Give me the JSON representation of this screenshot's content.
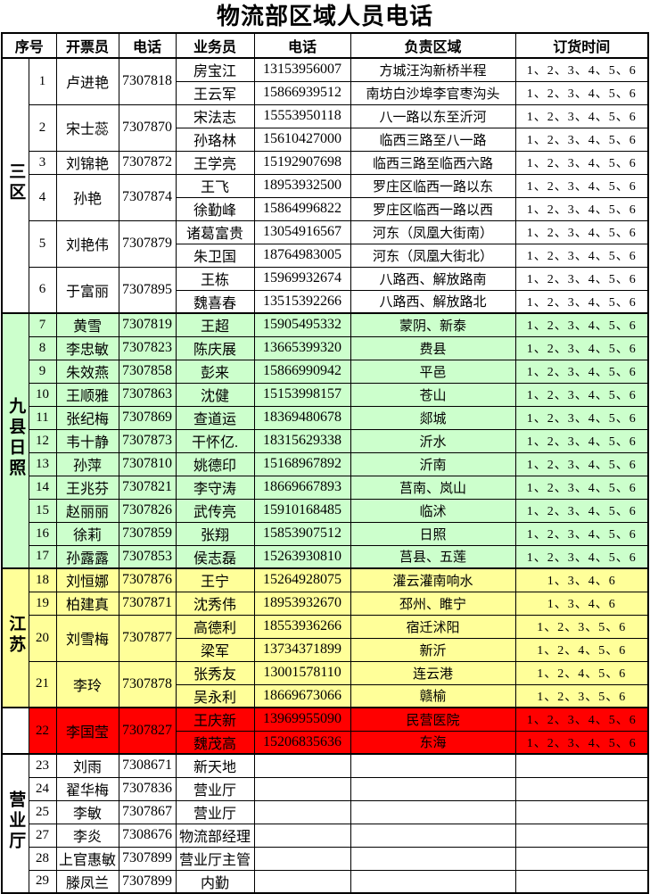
{
  "title": "物流部区域人员电话",
  "headers": [
    "序号",
    "开票员",
    "电话",
    "业务员",
    "电话",
    "负责区域",
    "订货时间"
  ],
  "colors": {
    "white": "#FFFFFF",
    "green": "#CCFFCC",
    "yellow": "#FFFF99",
    "red": "#FF0000",
    "border": "#000000"
  },
  "sections": [
    {
      "label": "三区",
      "bg": "#FFFFFF",
      "label_bg": "#FFFFFF",
      "rows": [
        {
          "no": "1",
          "clerk": "卢进艳",
          "clerk_phone": "7307818",
          "subs": [
            {
              "name": "房宝江",
              "phone": "13153956007",
              "area": "方城汪沟新桥半程",
              "time": "1、2、3、4、5、6"
            },
            {
              "name": "王云军",
              "phone": "15866939512",
              "area": "南坊白沙埠李官枣沟头",
              "time": "1、2、3、4、5、6"
            }
          ]
        },
        {
          "no": "2",
          "clerk": "宋士蕊",
          "clerk_phone": "7307870",
          "subs": [
            {
              "name": "宋法志",
              "phone": "15553950118",
              "area": "八一路以东至沂河",
              "time": "1、2、3、4、5、6"
            },
            {
              "name": "孙珞林",
              "phone": "15610427000",
              "area": "临西三路至八一路",
              "time": "1、2、3、4、5、6"
            }
          ]
        },
        {
          "no": "3",
          "clerk": "刘锦艳",
          "clerk_phone": "7307872",
          "subs": [
            {
              "name": "王学亮",
              "phone": "15192907698",
              "area": "临西三路至临西六路",
              "time": "1、2、3、4、5、6"
            }
          ]
        },
        {
          "no": "4",
          "clerk": "孙艳",
          "clerk_phone": "7307874",
          "subs": [
            {
              "name": "王飞",
              "phone": "18953932500",
              "area": "罗庄区临西一路以东",
              "time": "1、2、3、4、5、6"
            },
            {
              "name": "徐勤峰",
              "phone": "15864996822",
              "area": "罗庄区临西一路以西",
              "time": "1、2、3、4、5、6"
            }
          ]
        },
        {
          "no": "5",
          "clerk": "刘艳伟",
          "clerk_phone": "7307879",
          "subs": [
            {
              "name": "诸葛富贵",
              "phone": "13054916567",
              "area": "河东（凤凰大街南）",
              "time": "1、2、3、4、5、6"
            },
            {
              "name": "朱卫国",
              "phone": "18764983005",
              "area": "河东（凤凰大街北）",
              "time": "1、2、3、4、5、6"
            }
          ]
        },
        {
          "no": "6",
          "clerk": "于富丽",
          "clerk_phone": "7307895",
          "subs": [
            {
              "name": "王栋",
              "phone": "15969932674",
              "area": "八路西、解放路南",
              "time": "1、2、3、4、5、6"
            },
            {
              "name": "魏喜春",
              "phone": "13515392266",
              "area": "八路西、解放路北",
              "time": "1、2、3、4、5、6"
            }
          ]
        }
      ]
    },
    {
      "label": "九县日照",
      "bg": "#CCFFCC",
      "label_bg": "#CCFFCC",
      "rows": [
        {
          "no": "7",
          "clerk": "黄雪",
          "clerk_phone": "7307819",
          "subs": [
            {
              "name": "王超",
              "phone": "15905495332",
              "area": "蒙阴、新泰",
              "time": "1、2、3、4、5、6"
            }
          ]
        },
        {
          "no": "8",
          "clerk": "李忠敏",
          "clerk_phone": "7307823",
          "subs": [
            {
              "name": "陈庆展",
              "phone": "13665399320",
              "area": "费县",
              "time": "1、2、3、4、5、6"
            }
          ]
        },
        {
          "no": "9",
          "clerk": "朱效燕",
          "clerk_phone": "7307858",
          "subs": [
            {
              "name": "彭来",
              "phone": "15866990942",
              "area": "平邑",
              "time": "1、2、3、4、5、6"
            }
          ]
        },
        {
          "no": "10",
          "clerk": "王顺雅",
          "clerk_phone": "7307863",
          "subs": [
            {
              "name": "沈健",
              "phone": "15153998157",
              "area": "苍山",
              "time": "1、2、3、4、5、6"
            }
          ]
        },
        {
          "no": "11",
          "clerk": "张纪梅",
          "clerk_phone": "7307869",
          "subs": [
            {
              "name": "查道运",
              "phone": "18369480678",
              "area": "郯城",
              "time": "1、2、3、4、5、6"
            }
          ]
        },
        {
          "no": "12",
          "clerk": "韦十静",
          "clerk_phone": "7307873",
          "subs": [
            {
              "name": "干怀亿.",
              "phone": "18315629338",
              "area": "沂水",
              "time": "1、2、3、4、5、6"
            }
          ]
        },
        {
          "no": "13",
          "clerk": "孙萍",
          "clerk_phone": "7307810",
          "subs": [
            {
              "name": "姚德印",
              "phone": "15168967892",
              "area": "沂南",
              "time": "1、2、3、4、5、6"
            }
          ]
        },
        {
          "no": "14",
          "clerk": "王兆芬",
          "clerk_phone": "7307821",
          "subs": [
            {
              "name": "李守涛",
              "phone": "18669667893",
              "area": "莒南、岚山",
              "time": "1、2、3、4、5、6"
            }
          ]
        },
        {
          "no": "15",
          "clerk": "赵丽丽",
          "clerk_phone": "7307826",
          "subs": [
            {
              "name": "武传亮",
              "phone": "15910168485",
              "area": "临沭",
              "time": "1、2、3、4、5、6"
            }
          ]
        },
        {
          "no": "16",
          "clerk": "徐莉",
          "clerk_phone": "7307859",
          "subs": [
            {
              "name": "张翔",
              "phone": "15853907512",
              "area": "日照",
              "time": "1、2、3、4、5、6"
            }
          ]
        },
        {
          "no": "17",
          "clerk": "孙露露",
          "clerk_phone": "7307853",
          "subs": [
            {
              "name": "侯志磊",
              "phone": "15263930810",
              "area": "莒县、五莲",
              "time": "1、2、3、4、5、6"
            }
          ]
        }
      ]
    },
    {
      "label": "江苏",
      "bg": "#FFFF99",
      "label_bg": "#FFFF99",
      "rows": [
        {
          "no": "18",
          "clerk": "刘恒娜",
          "clerk_phone": "7307876",
          "subs": [
            {
              "name": "王宁",
              "phone": "15264928075",
              "area": "灌云灌南响水",
              "time": "1、3、4、6"
            }
          ]
        },
        {
          "no": "19",
          "clerk": "柏建真",
          "clerk_phone": "7307871",
          "subs": [
            {
              "name": "沈秀伟",
              "phone": "18953932670",
              "area": "邳州、睢宁",
              "time": "1、3、4、6"
            }
          ]
        },
        {
          "no": "20",
          "clerk": "刘雪梅",
          "clerk_phone": "7307877",
          "subs": [
            {
              "name": "高德利",
              "phone": "18553936266",
              "area": "宿迁沭阳",
              "time": "1、2、3、5、6"
            },
            {
              "name": "梁军",
              "phone": "13734371899",
              "area": "新沂",
              "time": "1、2、4、5、6"
            }
          ]
        },
        {
          "no": "21",
          "clerk": "李玲",
          "clerk_phone": "7307878",
          "subs": [
            {
              "name": "张秀友",
              "phone": "13001578110",
              "area": "连云港",
              "time": "1、2、4、5、6"
            },
            {
              "name": "吴永利",
              "phone": "18669673066",
              "area": "赣榆",
              "time": "1、2、3、5、6"
            }
          ]
        }
      ]
    },
    {
      "label": "",
      "bg": "#FF0000",
      "label_bg": "#FFFFFF",
      "rows": [
        {
          "no": "22",
          "clerk": "李国莹",
          "clerk_phone": "7307827",
          "subs": [
            {
              "name": "王庆新",
              "phone": "13969955090",
              "area": "民营医院",
              "time": "1、2、3、4、5、6"
            },
            {
              "name": "魏茂高",
              "phone": "15206835636",
              "area": "东海",
              "time": "1、2、3、4、5、6"
            }
          ]
        }
      ]
    },
    {
      "label": "营业厅",
      "bg": "#FFFFFF",
      "label_bg": "#FFFFFF",
      "rows": [
        {
          "no": "23",
          "clerk": "刘雨",
          "clerk_phone": "7308671",
          "subs": [
            {
              "name": "新天地",
              "phone": "",
              "area": "",
              "time": ""
            }
          ]
        },
        {
          "no": "24",
          "clerk": "翟华梅",
          "clerk_phone": "7307836",
          "subs": [
            {
              "name": "营业厅",
              "phone": "",
              "area": "",
              "time": ""
            }
          ]
        },
        {
          "no": "25",
          "clerk": "李敏",
          "clerk_phone": "7307867",
          "subs": [
            {
              "name": "营业厅",
              "phone": "",
              "area": "",
              "time": ""
            }
          ]
        },
        {
          "no": "27",
          "clerk": "李炎",
          "clerk_phone": "7308676",
          "subs": [
            {
              "name": "物流部经理",
              "phone": "",
              "area": "",
              "time": ""
            }
          ]
        },
        {
          "no": "28",
          "clerk": "上官惠敏",
          "clerk_phone": "7307899",
          "subs": [
            {
              "name": "营业厅主管",
              "phone": "",
              "area": "",
              "time": ""
            }
          ]
        },
        {
          "no": "29",
          "clerk": "滕凤兰",
          "clerk_phone": "7307899",
          "subs": [
            {
              "name": "内勤",
              "phone": "",
              "area": "",
              "time": ""
            }
          ]
        }
      ]
    }
  ]
}
